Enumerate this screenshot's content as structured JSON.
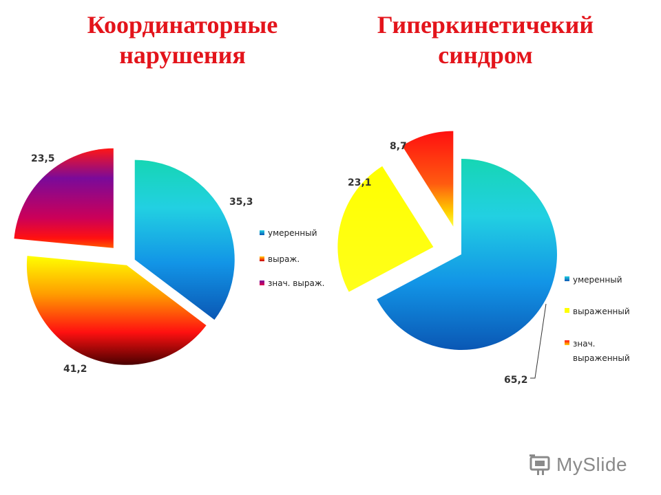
{
  "logo": {
    "text": "MySlide"
  },
  "colors": {
    "title": "#e3141b"
  },
  "chart_data": [
    {
      "type": "pie",
      "title_lines": [
        "Координаторные",
        "нарушения"
      ],
      "slices": [
        {
          "label": "умеренный",
          "value": 35.3,
          "value_label": "35,3"
        },
        {
          "label": "выраж.",
          "value": 41.2,
          "value_label": "41,2"
        },
        {
          "label": "знач. выраж.",
          "value": 23.5,
          "value_label": "23,5"
        }
      ],
      "exploded": true,
      "legend": "right"
    },
    {
      "type": "pie",
      "title_lines": [
        "Гиперкинетичекий",
        "синдром"
      ],
      "slices": [
        {
          "label": "умеренный",
          "value": 65.2,
          "value_label": "65,2"
        },
        {
          "label": "выраженный",
          "value": 23.1,
          "value_label": "23,1"
        },
        {
          "label": "знач. выраженный",
          "value": 8.7,
          "value_label": "8,7"
        }
      ],
      "exploded": true,
      "legend": "bottom-right"
    }
  ]
}
